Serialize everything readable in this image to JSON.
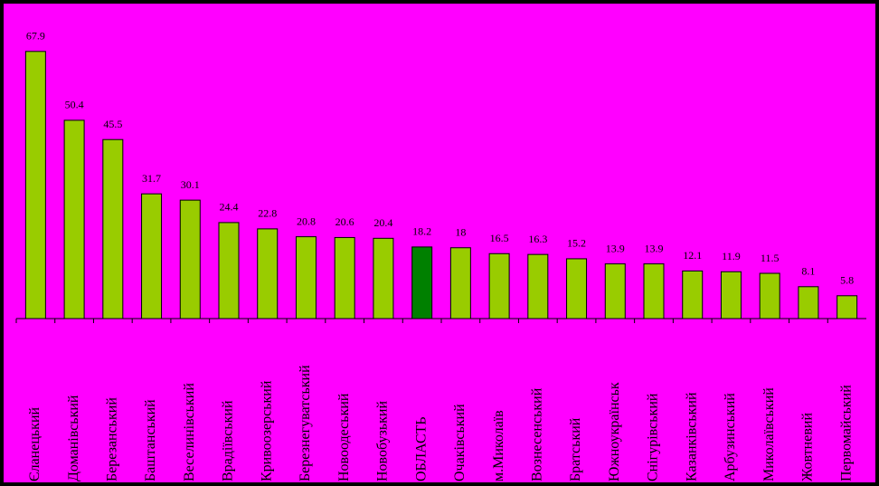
{
  "chart_data": {
    "type": "bar",
    "categories": [
      "Єланецький",
      "Доманівський",
      "Березанський",
      "Баштанський",
      "Веселинівський",
      "Врадіївський",
      "Кривоозерський",
      "Березнегуватський",
      "Новоодеський",
      "Новобузький",
      "ОБЛАСТЬ",
      "Очаківський",
      "м.Миколаїв",
      "Вознесенський",
      "Братський",
      "Южноукраїнськ",
      "Снігурівський",
      "Казанківський",
      "Арбузинський",
      "Миколаївський",
      "Жовтневий",
      "Первомайський"
    ],
    "values": [
      67.9,
      50.4,
      45.5,
      31.7,
      30.1,
      24.4,
      22.8,
      20.8,
      20.6,
      20.4,
      18.2,
      18.0,
      16.5,
      16.3,
      15.2,
      13.9,
      13.9,
      12.1,
      11.9,
      11.5,
      8.1,
      5.8
    ],
    "colors": [
      "#99cc00",
      "#99cc00",
      "#99cc00",
      "#99cc00",
      "#99cc00",
      "#99cc00",
      "#99cc00",
      "#99cc00",
      "#99cc00",
      "#99cc00",
      "#008000",
      "#99cc00",
      "#99cc00",
      "#99cc00",
      "#99cc00",
      "#99cc00",
      "#99cc00",
      "#99cc00",
      "#99cc00",
      "#99cc00",
      "#99cc00",
      "#99cc00"
    ],
    "ylim": [
      0,
      72
    ]
  }
}
